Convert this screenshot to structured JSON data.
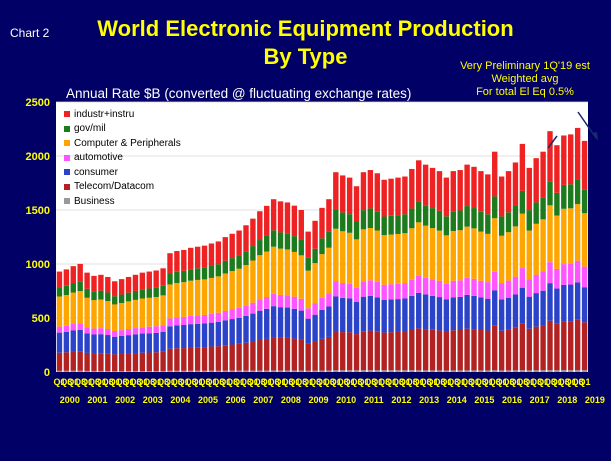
{
  "header": {
    "chart_label": "Chart 2",
    "title_line1": "World Electronic Equipment Production",
    "title_line2": "By Type",
    "note_line1": "Very Preliminary 1Q'19 est",
    "note_line2": "Weighted avg",
    "note_line3": "For total El Eq 0.5%",
    "subtitle": "Annual Rate $B (converted @ fluctuating exchange rates)"
  },
  "colors": {
    "background": "#000066",
    "plot_background": "#ffffff",
    "axis_text": "#ffff00"
  },
  "chart_data": {
    "type": "bar",
    "stacked": true,
    "ylim": [
      0,
      2500
    ],
    "yticks": [
      0,
      500,
      1000,
      1500,
      2000,
      2500
    ],
    "xlabel": "",
    "ylabel": "Annual Rate $B",
    "legend_position": "top-left",
    "quarter_labels": [
      "Q1",
      "Q3"
    ],
    "years": [
      "2000",
      "2001",
      "2002",
      "2003",
      "2004",
      "2005",
      "2006",
      "2007",
      "2008",
      "2009",
      "2010",
      "2011",
      "2012",
      "2013",
      "2014",
      "2015",
      "2016",
      "2017",
      "2018",
      "2019"
    ],
    "legend": [
      "industr+instru",
      "gov/mil",
      "Computer & Peripherals",
      "automotive",
      "consumer",
      "Telecom/Datacom",
      "Business"
    ],
    "series_stack_order": [
      "Business",
      "Telecom/Datacom",
      "consumer",
      "automotive",
      "Computer & Peripherals",
      "gov/mil",
      "industr+instru"
    ],
    "series_colors": {
      "Business": "#999999",
      "Telecom/Datacom": "#b22222",
      "consumer": "#2a43c9",
      "automotive": "#ff55ff",
      "Computer & Peripherals": "#ffa500",
      "gov/mil": "#1d7a1d",
      "industr+instru": "#ee2222"
    },
    "totals": [
      930,
      950,
      980,
      1000,
      920,
      890,
      900,
      880,
      840,
      860,
      880,
      900,
      920,
      930,
      940,
      960,
      1100,
      1120,
      1130,
      1150,
      1160,
      1170,
      1190,
      1210,
      1250,
      1280,
      1310,
      1360,
      1420,
      1490,
      1540,
      1600,
      1580,
      1570,
      1540,
      1500,
      1300,
      1400,
      1520,
      1600,
      1850,
      1820,
      1800,
      1720,
      1850,
      1870,
      1840,
      1780,
      1790,
      1800,
      1810,
      1880,
      1960,
      1920,
      1890,
      1860,
      1800,
      1860,
      1870,
      1920,
      1900,
      1860,
      1830,
      2040,
      1810,
      1860,
      1940,
      2110,
      1890,
      1980,
      2040,
      2230,
      2100,
      2190,
      2200,
      2260,
      2140
    ],
    "shares": {
      "Business": [
        0.012,
        0.012,
        0.012,
        0.012,
        0.011,
        0.011,
        0.011,
        0.011,
        0.011,
        0.011,
        0.011,
        0.011,
        0.01,
        0.01,
        0.01,
        0.01,
        0.01,
        0.01,
        0.01,
        0.01,
        0.01,
        0.01,
        0.01,
        0.01,
        0.01,
        0.01,
        0.01,
        0.01,
        0.009,
        0.009,
        0.009,
        0.009,
        0.009,
        0.009,
        0.009,
        0.009,
        0.009,
        0.009,
        0.009,
        0.009,
        0.009,
        0.009,
        0.009,
        0.009,
        0.009,
        0.009,
        0.009,
        0.009,
        0.009,
        0.009,
        0.009,
        0.009,
        0.008,
        0.008,
        0.008,
        0.008,
        0.008,
        0.008,
        0.008,
        0.008,
        0.008,
        0.008,
        0.008,
        0.008,
        0.008,
        0.008,
        0.008,
        0.008,
        0.008,
        0.008,
        0.008,
        0.008,
        0.008,
        0.008,
        0.008,
        0.008,
        0.008
      ],
      "Telecom/Datacom": [
        0.18,
        0.18,
        0.181,
        0.181,
        0.181,
        0.182,
        0.182,
        0.182,
        0.183,
        0.183,
        0.183,
        0.184,
        0.184,
        0.184,
        0.185,
        0.185,
        0.185,
        0.186,
        0.186,
        0.187,
        0.187,
        0.187,
        0.188,
        0.188,
        0.188,
        0.189,
        0.189,
        0.189,
        0.19,
        0.19,
        0.19,
        0.191,
        0.191,
        0.192,
        0.192,
        0.192,
        0.193,
        0.193,
        0.193,
        0.194,
        0.194,
        0.194,
        0.195,
        0.195,
        0.195,
        0.196,
        0.196,
        0.196,
        0.197,
        0.197,
        0.198,
        0.198,
        0.198,
        0.199,
        0.199,
        0.199,
        0.2,
        0.2,
        0.2,
        0.201,
        0.201,
        0.201,
        0.202,
        0.202,
        0.203,
        0.203,
        0.203,
        0.204,
        0.204,
        0.204,
        0.205,
        0.205,
        0.205,
        0.206,
        0.206,
        0.206,
        0.207
      ],
      "consumer": [
        0.2,
        0.199,
        0.199,
        0.198,
        0.198,
        0.197,
        0.196,
        0.196,
        0.195,
        0.194,
        0.194,
        0.193,
        0.193,
        0.192,
        0.191,
        0.191,
        0.19,
        0.189,
        0.189,
        0.188,
        0.188,
        0.187,
        0.186,
        0.186,
        0.185,
        0.184,
        0.184,
        0.183,
        0.182,
        0.182,
        0.181,
        0.181,
        0.18,
        0.179,
        0.179,
        0.178,
        0.178,
        0.177,
        0.176,
        0.176,
        0.175,
        0.174,
        0.174,
        0.173,
        0.173,
        0.172,
        0.171,
        0.171,
        0.17,
        0.169,
        0.169,
        0.168,
        0.168,
        0.167,
        0.166,
        0.166,
        0.165,
        0.164,
        0.164,
        0.163,
        0.162,
        0.162,
        0.161,
        0.161,
        0.16,
        0.159,
        0.159,
        0.158,
        0.157,
        0.157,
        0.156,
        0.156,
        0.155,
        0.154,
        0.154,
        0.153,
        0.152
      ],
      "automotive": [
        0.06,
        0.06,
        0.061,
        0.061,
        0.061,
        0.062,
        0.062,
        0.063,
        0.063,
        0.063,
        0.064,
        0.064,
        0.064,
        0.065,
        0.065,
        0.066,
        0.066,
        0.066,
        0.067,
        0.067,
        0.068,
        0.068,
        0.068,
        0.069,
        0.069,
        0.069,
        0.07,
        0.07,
        0.071,
        0.071,
        0.071,
        0.072,
        0.072,
        0.073,
        0.073,
        0.073,
        0.074,
        0.074,
        0.074,
        0.075,
        0.075,
        0.076,
        0.076,
        0.076,
        0.077,
        0.077,
        0.078,
        0.078,
        0.078,
        0.079,
        0.079,
        0.079,
        0.08,
        0.08,
        0.081,
        0.081,
        0.081,
        0.082,
        0.082,
        0.082,
        0.083,
        0.083,
        0.084,
        0.084,
        0.084,
        0.085,
        0.085,
        0.086,
        0.086,
        0.086,
        0.087,
        0.087,
        0.087,
        0.088,
        0.088,
        0.089,
        0.089
      ],
      "Computer & Peripherals": [
        0.3,
        0.299,
        0.298,
        0.297,
        0.296,
        0.296,
        0.295,
        0.294,
        0.293,
        0.292,
        0.291,
        0.29,
        0.289,
        0.288,
        0.288,
        0.287,
        0.286,
        0.285,
        0.284,
        0.283,
        0.282,
        0.281,
        0.28,
        0.279,
        0.278,
        0.278,
        0.277,
        0.276,
        0.275,
        0.274,
        0.273,
        0.272,
        0.271,
        0.27,
        0.269,
        0.268,
        0.268,
        0.267,
        0.266,
        0.265,
        0.264,
        0.263,
        0.262,
        0.261,
        0.26,
        0.259,
        0.258,
        0.258,
        0.257,
        0.256,
        0.255,
        0.254,
        0.253,
        0.252,
        0.251,
        0.25,
        0.249,
        0.248,
        0.248,
        0.247,
        0.246,
        0.245,
        0.244,
        0.243,
        0.242,
        0.241,
        0.24,
        0.239,
        0.238,
        0.238,
        0.237,
        0.236,
        0.235,
        0.234,
        0.233,
        0.232,
        0.231
      ],
      "gov/mil": [
        0.09,
        0.09,
        0.09,
        0.091,
        0.091,
        0.091,
        0.091,
        0.091,
        0.091,
        0.091,
        0.092,
        0.092,
        0.092,
        0.092,
        0.092,
        0.092,
        0.092,
        0.093,
        0.093,
        0.093,
        0.093,
        0.093,
        0.093,
        0.093,
        0.094,
        0.094,
        0.094,
        0.094,
        0.094,
        0.094,
        0.094,
        0.095,
        0.095,
        0.095,
        0.095,
        0.095,
        0.095,
        0.095,
        0.096,
        0.096,
        0.096,
        0.096,
        0.096,
        0.096,
        0.096,
        0.097,
        0.097,
        0.097,
        0.097,
        0.097,
        0.097,
        0.097,
        0.098,
        0.098,
        0.098,
        0.098,
        0.098,
        0.098,
        0.098,
        0.099,
        0.099,
        0.099,
        0.099,
        0.099,
        0.099,
        0.099,
        0.1,
        0.1,
        0.1,
        0.1,
        0.1,
        0.1,
        0.1,
        0.101,
        0.101,
        0.101,
        0.101
      ],
      "industr+instru": [
        0.158,
        0.16,
        0.159,
        0.161,
        0.162,
        0.161,
        0.163,
        0.163,
        0.164,
        0.166,
        0.165,
        0.166,
        0.168,
        0.169,
        0.169,
        0.169,
        0.171,
        0.171,
        0.171,
        0.172,
        0.172,
        0.174,
        0.175,
        0.174,
        0.175,
        0.176,
        0.176,
        0.177,
        0.179,
        0.179,
        0.181,
        0.18,
        0.182,
        0.182,
        0.183,
        0.185,
        0.183,
        0.185,
        0.186,
        0.185,
        0.187,
        0.188,
        0.188,
        0.19,
        0.19,
        0.19,
        0.191,
        0.191,
        0.192,
        0.193,
        0.193,
        0.195,
        0.195,
        0.196,
        0.197,
        0.198,
        0.199,
        0.2,
        0.2,
        0.2,
        0.201,
        0.202,
        0.202,
        0.203,
        0.204,
        0.205,
        0.205,
        0.206,
        0.207,
        0.207,
        0.207,
        0.208,
        0.21,
        0.209,
        0.21,
        0.211,
        0.212
      ]
    }
  }
}
